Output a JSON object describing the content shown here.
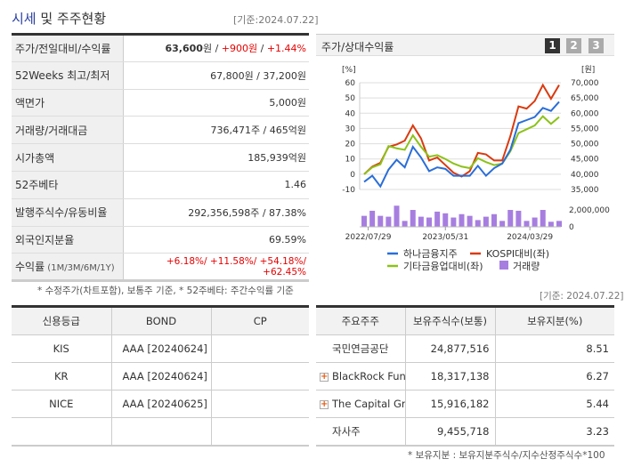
{
  "header": {
    "title_highlight": "시세",
    "title_rest": " 및 주주현황",
    "basis": "[기준:2024.07.22]"
  },
  "sise": [
    {
      "label": "주가/전일대비/수익률",
      "price": "63,600",
      "unit": "원",
      "sep": " / ",
      "change": "+900원",
      "sep2": " / ",
      "rate": "+1.44%"
    },
    {
      "label": "52Weeks 최고/최저",
      "value": "67,800원 / 37,200원"
    },
    {
      "label": "액면가",
      "value": "5,000원"
    },
    {
      "label": "거래량/거래대금",
      "value": "736,471주 / 465억원"
    },
    {
      "label": "시가총액",
      "value": "185,939억원"
    },
    {
      "label": "52주베타",
      "value": "1.46"
    },
    {
      "label": "발행주식수/유동비율",
      "value": "292,356,598주 / 87.38%"
    },
    {
      "label": "외국인지분율",
      "value": "69.59%"
    },
    {
      "label": "수익률",
      "label_sub": " (1M/3M/6M/1Y)",
      "value": "+6.18%/ +11.58%/ +54.18%/ +62.45%"
    }
  ],
  "sise_note": "* 수정주가(차트포함), 보통주 기준, * 52주베타: 주간수익률 기준",
  "chart_panel": {
    "title": "주가/상대수익률",
    "pages": [
      "1",
      "2",
      "3"
    ],
    "active_page": "1"
  },
  "chart_data": {
    "type": "line",
    "left_axis": {
      "unit": "[%]",
      "ticks": [
        60,
        50,
        40,
        30,
        20,
        10,
        0,
        -10
      ],
      "range": [
        -10,
        60
      ]
    },
    "right_axis": {
      "unit": "[원]",
      "ticks": [
        "70,000",
        "65,000",
        "60,000",
        "55,000",
        "50,000",
        "45,000",
        "40,000",
        "35,000"
      ],
      "range": [
        35000,
        70000
      ]
    },
    "volume_axis": {
      "ticks": [
        "2,000,000",
        "0"
      ],
      "range": [
        0,
        2000000
      ]
    },
    "x_labels": [
      {
        "label": "2022/07/29",
        "index": 0.5
      },
      {
        "label": "2023/05/31",
        "index": 10
      },
      {
        "label": "2024/03/29",
        "index": 20.4
      }
    ],
    "grid": true,
    "legend_position": "bottom",
    "series": [
      {
        "name": "하나금융지주",
        "color": "#2a6ed8",
        "values": [
          -5,
          -1,
          -8,
          3,
          9.5,
          4.5,
          18,
          11,
          2,
          4.5,
          3.5,
          -1,
          -1,
          -1,
          5.5,
          -1,
          4,
          7,
          16,
          33.5,
          35.5,
          37.5,
          43.5,
          41.5,
          47.5
        ]
      },
      {
        "name": "KOSPI대비(좌)",
        "color": "#d93a10",
        "values": [
          0,
          5,
          7.5,
          18,
          19.5,
          22,
          32,
          23.5,
          9,
          11,
          6,
          1,
          -1.5,
          2,
          14,
          13,
          9,
          9,
          25,
          44.5,
          43,
          48,
          58.5,
          49.5,
          58.5
        ]
      },
      {
        "name": "기타금융업대비(좌)",
        "color": "#8cc21a",
        "values": [
          0,
          4.5,
          6.5,
          18.5,
          17,
          16,
          25.5,
          18,
          11.5,
          12.5,
          10,
          7,
          5,
          4,
          10.5,
          8,
          6,
          7,
          15,
          27,
          29.5,
          32,
          38,
          33,
          37.5
        ]
      }
    ],
    "volume": {
      "name": "거래량",
      "color": "#a77ee0",
      "values": [
        1300000,
        1900000,
        1300000,
        1200000,
        2500000,
        700000,
        2000000,
        1200000,
        1100000,
        1800000,
        1600000,
        1100000,
        1500000,
        1300000,
        800000,
        1200000,
        1500000,
        700000,
        2000000,
        1900000,
        700000,
        1100000,
        2000000,
        600000,
        700000
      ]
    }
  },
  "bottom_basis": "[기준: 2024.07.22]",
  "credit": {
    "headers": [
      "신용등급",
      "BOND",
      "CP"
    ],
    "rows": [
      [
        "KIS",
        "AAA [20240624]",
        ""
      ],
      [
        "KR",
        "AAA [20240624]",
        ""
      ],
      [
        "NICE",
        "AAA [20240625]",
        ""
      ],
      [
        "",
        "",
        ""
      ]
    ]
  },
  "holders": {
    "headers": [
      "주요주주",
      "보유주식수(보통)",
      "보유지분(%)"
    ],
    "rows": [
      {
        "name": "국민연금공단",
        "shares": "24,877,516",
        "pct": "8.51",
        "expand": false
      },
      {
        "name": "BlackRock Fund Advis…",
        "shares": "18,317,138",
        "pct": "6.27",
        "expand": true
      },
      {
        "name": "The Capital Group Co…",
        "shares": "15,916,182",
        "pct": "5.44",
        "expand": true
      },
      {
        "name": "자사주",
        "shares": "9,455,718",
        "pct": "3.23",
        "expand": false
      }
    ]
  },
  "holders_note": "* 보유지분 : 보유지분주식수/지수산정주식수*100"
}
